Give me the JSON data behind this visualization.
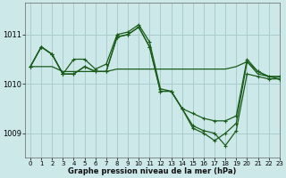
{
  "bg_color": "#cce8e8",
  "grid_color": "#aacccc",
  "line_color": "#1a5c1a",
  "xlabel": "Graphe pression niveau de la mer (hPa)",
  "xlim": [
    -0.5,
    23
  ],
  "ylim": [
    1008.5,
    1011.65
  ],
  "yticks": [
    1009,
    1010,
    1011
  ],
  "xticks": [
    0,
    1,
    2,
    3,
    4,
    5,
    6,
    7,
    8,
    9,
    10,
    11,
    12,
    13,
    14,
    15,
    16,
    17,
    18,
    19,
    20,
    21,
    22,
    23
  ],
  "line_flat": {
    "x": [
      0,
      1,
      2,
      3,
      4,
      5,
      6,
      7,
      8,
      9,
      10,
      11,
      12,
      13,
      14,
      15,
      16,
      17,
      18,
      19,
      20,
      21,
      22,
      23
    ],
    "y": [
      1010.35,
      1010.35,
      1010.35,
      1010.25,
      1010.25,
      1010.25,
      1010.25,
      1010.25,
      1010.3,
      1010.3,
      1010.3,
      1010.3,
      1010.3,
      1010.3,
      1010.3,
      1010.3,
      1010.3,
      1010.3,
      1010.3,
      1010.35,
      1010.45,
      1010.2,
      1010.15,
      1010.15
    ]
  },
  "line_peak_drop1": {
    "x": [
      0,
      1,
      2,
      3,
      4,
      5,
      6,
      7,
      8,
      9,
      10,
      11,
      12,
      13,
      14,
      15,
      16,
      17,
      18,
      19,
      20,
      21,
      22,
      23
    ],
    "y": [
      1010.35,
      1010.75,
      1010.6,
      1010.2,
      1010.5,
      1010.5,
      1010.3,
      1010.4,
      1011.0,
      1011.05,
      1011.2,
      1010.85,
      1009.9,
      1009.85,
      1009.5,
      1009.15,
      1009.05,
      1009.0,
      1008.75,
      1009.05,
      1010.2,
      1010.15,
      1010.1,
      1010.1
    ]
  },
  "line_peak_drop2": {
    "x": [
      0,
      1,
      2,
      3,
      4,
      5,
      6,
      7,
      8,
      9,
      10,
      11,
      12,
      13,
      14,
      15,
      16,
      17,
      18,
      19,
      20,
      21,
      22,
      23
    ],
    "y": [
      1010.35,
      1010.75,
      1010.6,
      1010.2,
      1010.2,
      1010.35,
      1010.25,
      1010.25,
      1010.95,
      1011.0,
      1011.15,
      1010.75,
      1009.85,
      1009.85,
      1009.5,
      1009.4,
      1009.3,
      1009.25,
      1009.25,
      1009.35,
      1010.5,
      1010.25,
      1010.15,
      1010.1
    ]
  },
  "line_peak_drop3": {
    "x": [
      0,
      1,
      2,
      3,
      4,
      5,
      6,
      7,
      8,
      9,
      10,
      11,
      12,
      13,
      14,
      15,
      16,
      17,
      18,
      19,
      20,
      21,
      22,
      23
    ],
    "y": [
      1010.35,
      1010.75,
      1010.6,
      1010.2,
      1010.2,
      1010.35,
      1010.25,
      1010.25,
      1010.95,
      1011.0,
      1011.15,
      1010.75,
      1009.85,
      1009.85,
      1009.5,
      1009.1,
      1009.0,
      1008.85,
      1009.0,
      1009.2,
      1010.45,
      1010.25,
      1010.15,
      1010.15
    ]
  }
}
